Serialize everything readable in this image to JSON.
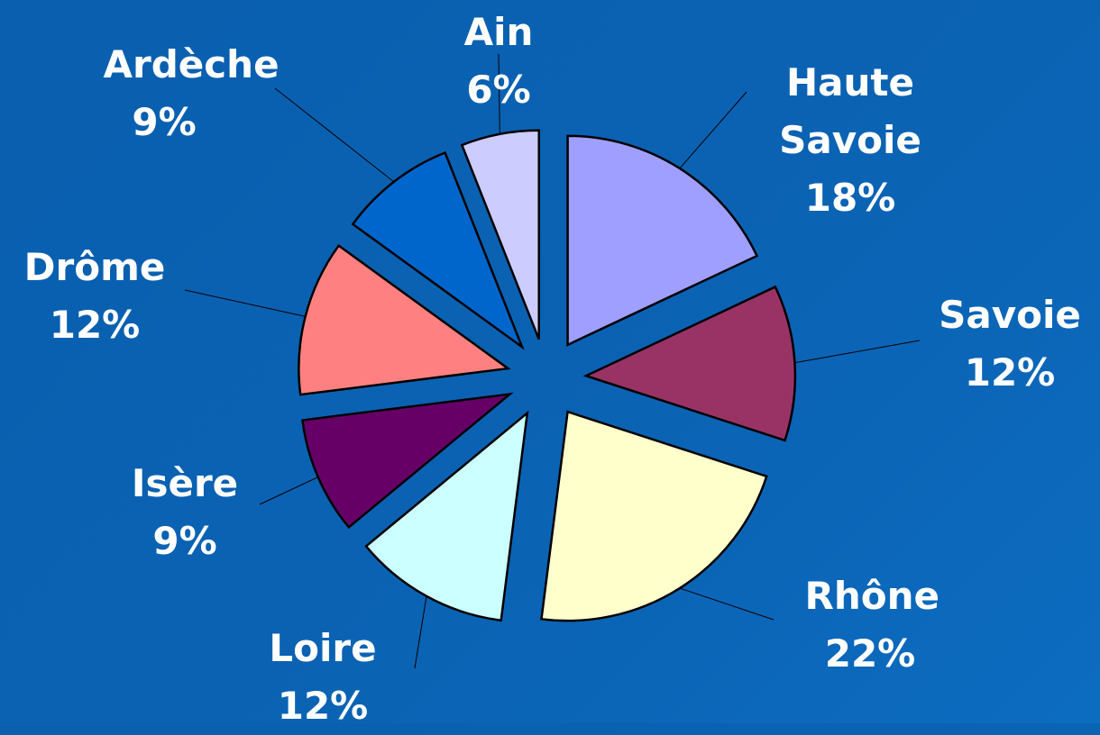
{
  "chart_data": {
    "type": "pie",
    "categories": [
      "Haute Savoie",
      "Savoie",
      "Rhône",
      "Loire",
      "Isère",
      "Drôme",
      "Ardèche",
      "Ain"
    ],
    "values": [
      18,
      12,
      22,
      12,
      9,
      12,
      9,
      6
    ],
    "value_labels": [
      "18%",
      "12%",
      "22%",
      "12%",
      "9%",
      "12%",
      "9%",
      "6%"
    ],
    "colors": [
      "#9f9fff",
      "#993366",
      "#ffffcc",
      "#ccffff",
      "#660066",
      "#ff8080",
      "#0066cc",
      "#ccccff"
    ]
  }
}
